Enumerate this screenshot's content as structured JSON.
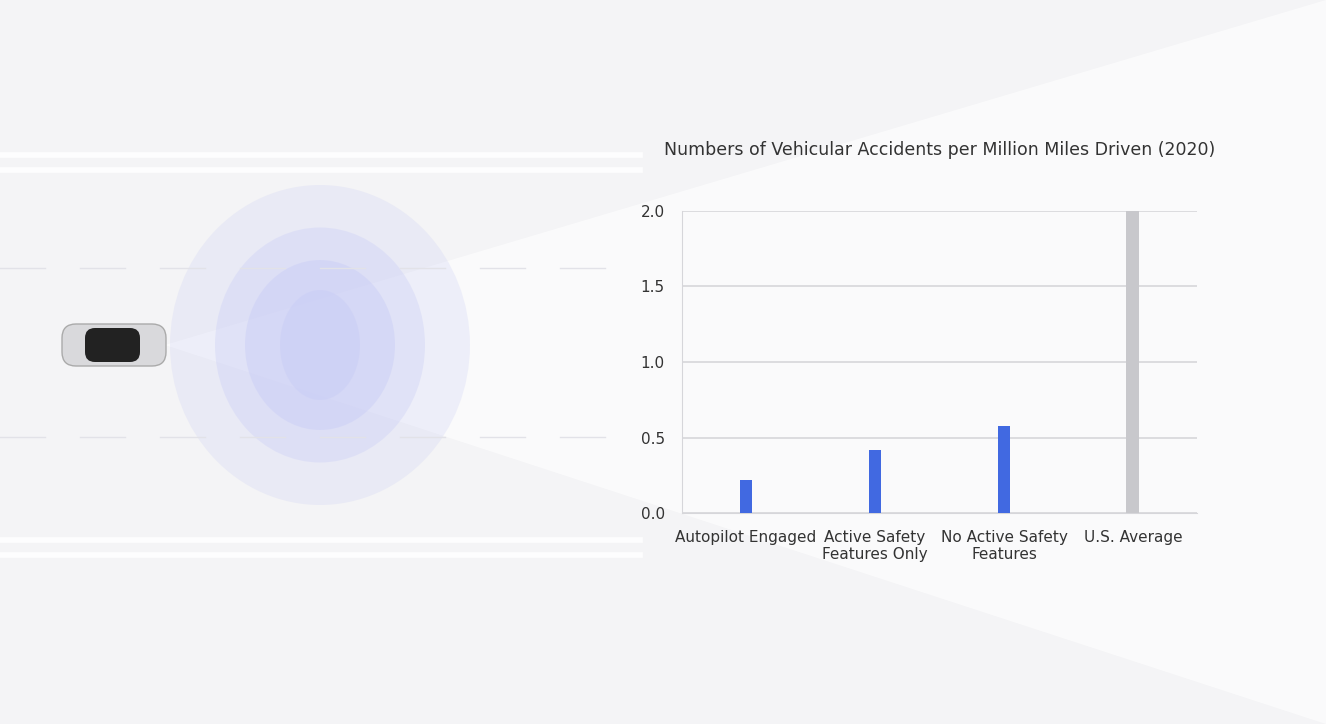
{
  "chart_data": {
    "type": "bar",
    "title": "Numbers of Vehicular Accidents per Million Miles Driven (2020)",
    "categories": [
      "Autopilot Engaged",
      "Active Safety Features Only",
      "No Active Safety Features",
      "U.S. Average"
    ],
    "values": [
      0.22,
      0.42,
      0.58,
      2.0
    ],
    "colors": [
      "#4169e1",
      "#4169e1",
      "#4169e1",
      "#c8c8cc"
    ],
    "ylim": [
      0,
      2.0
    ],
    "yticks": [
      {
        "value": 0,
        "label": "0.0"
      },
      0.5,
      {
        "value": 1,
        "label": "1.0"
      },
      1.5,
      {
        "value": 2,
        "label": "2.0"
      }
    ],
    "grid": true
  }
}
